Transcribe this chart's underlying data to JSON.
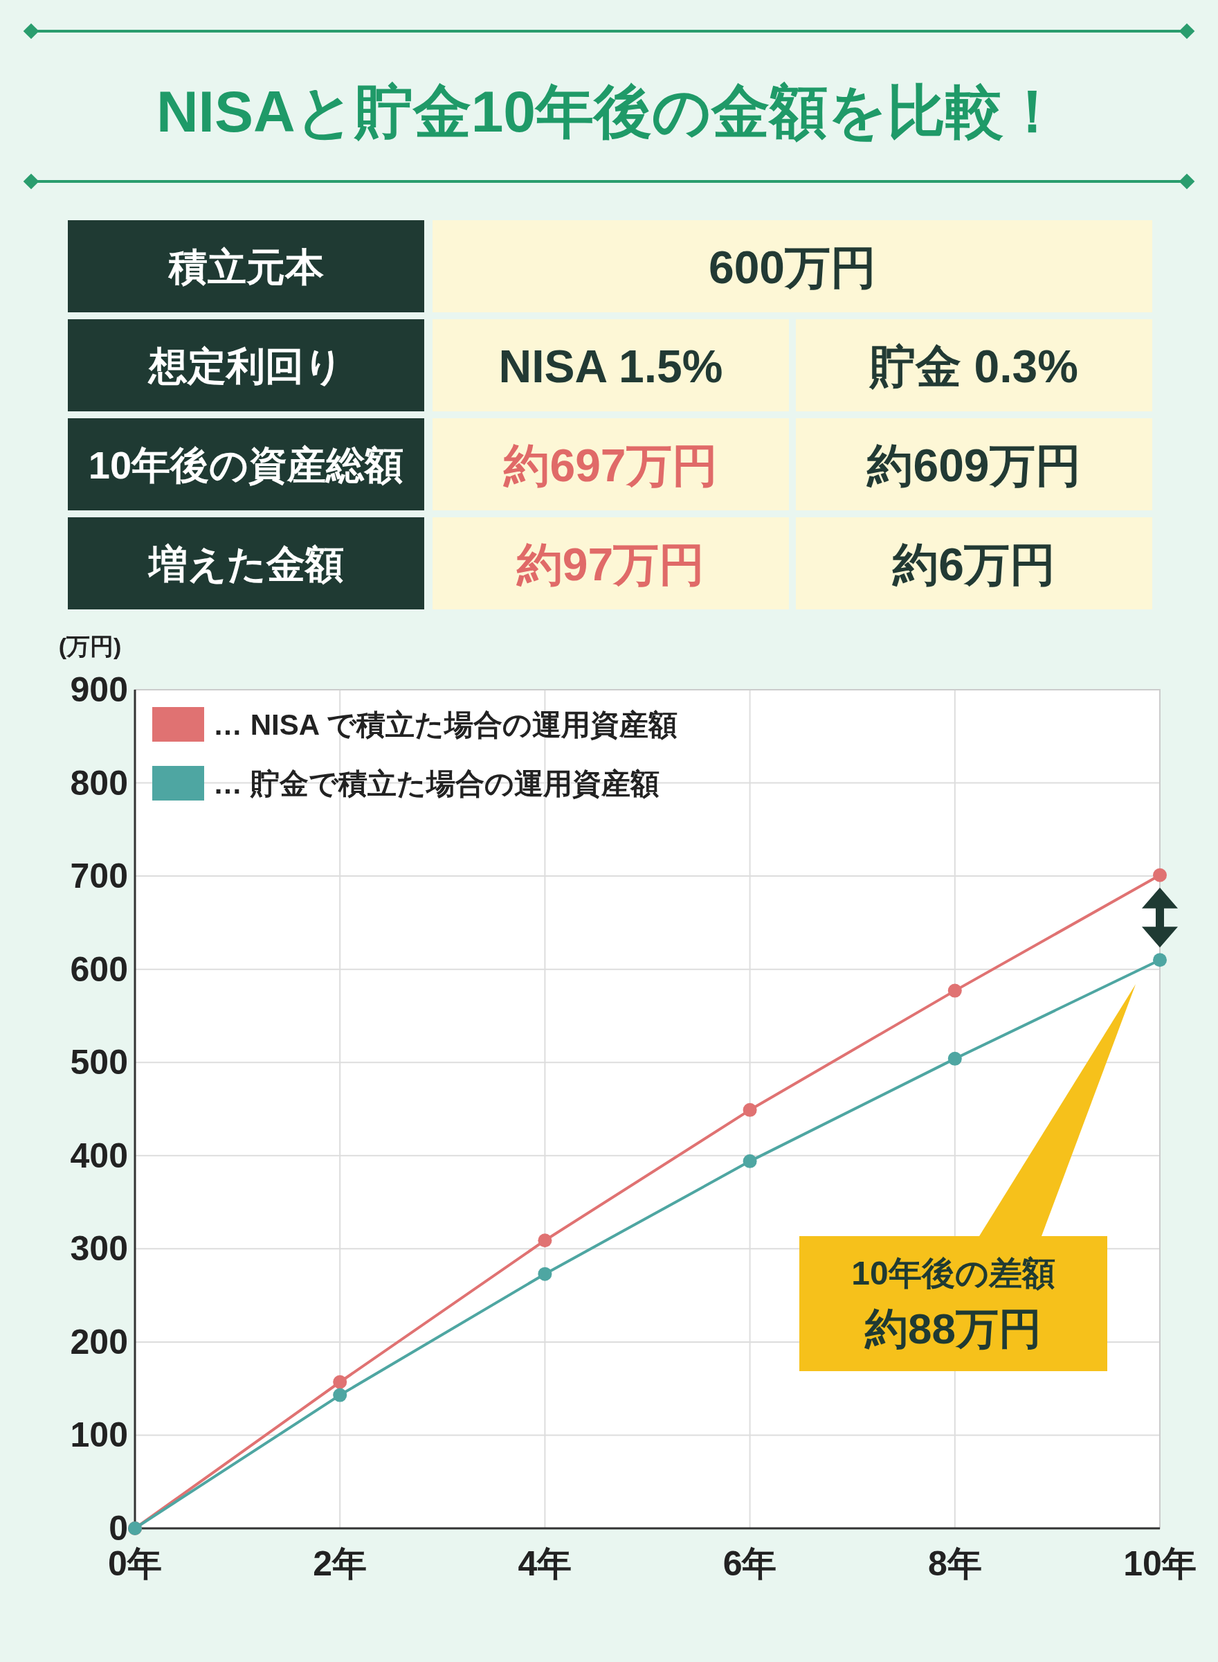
{
  "chart_data": [
    {
      "type": "other",
      "title": "NISAと貯金10年後の金額を比較！",
      "annotations": [
        "積立元本",
        "600万円",
        "想定利回り",
        "NISA 1.5%",
        "貯金 0.3%",
        "10年後の資産総額",
        "約697万円",
        "約609万円",
        "増えた金額",
        "約97万円",
        "約6万円"
      ]
    },
    {
      "type": "line",
      "ylabel": "(万円)",
      "x": [
        0,
        2,
        4,
        6,
        8,
        10
      ],
      "series": [
        {
          "name": "… NISA で積立た場合の運用資産額",
          "color": "#e07272",
          "values": [
            0,
            157,
            309,
            449,
            577,
            701
          ]
        },
        {
          "name": "… 貯金で積立た場合の運用資産額",
          "color": "#4ea6a2",
          "values": [
            0,
            143,
            273,
            394,
            504,
            610
          ]
        }
      ],
      "xlim": [
        0,
        10
      ],
      "xticks": [
        {
          "value": 0,
          "label": "0年"
        },
        {
          "value": 2,
          "label": "2年"
        },
        {
          "value": 4,
          "label": "4年"
        },
        {
          "value": 6,
          "label": "6年"
        },
        {
          "value": 8,
          "label": "8年"
        },
        {
          "value": 10,
          "label": "10年"
        }
      ],
      "ylim": [
        0,
        900
      ],
      "yticks": [
        0,
        100,
        200,
        300,
        400,
        500,
        600,
        700,
        800,
        900
      ],
      "grid": true,
      "legend": "top left",
      "marker": "circle",
      "line_style": "solid",
      "annotations": [
        "10年後の差額",
        "約88万円"
      ]
    }
  ]
}
